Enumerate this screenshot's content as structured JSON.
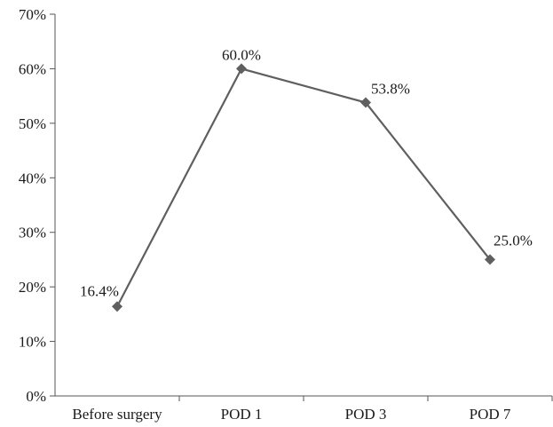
{
  "chart_data": {
    "type": "line",
    "categories": [
      "Before surgery",
      "POD 1",
      "POD 3",
      "POD 7"
    ],
    "series": [
      {
        "values": [
          16.4,
          60.0,
          53.8,
          25.0
        ],
        "labels": [
          "16.4%",
          "60.0%",
          "53.8%",
          "25.0%"
        ],
        "color": "#5f5f5f",
        "marker": "diamond"
      }
    ],
    "ylim": [
      0,
      70
    ],
    "yticks": [
      {
        "value": 0,
        "label": "0%"
      },
      {
        "value": 10,
        "label": "10%"
      },
      {
        "value": 20,
        "label": "20%"
      },
      {
        "value": 30,
        "label": "30%"
      },
      {
        "value": 40,
        "label": "40%"
      },
      {
        "value": 50,
        "label": "50%"
      },
      {
        "value": 60,
        "label": "60%"
      },
      {
        "value": 70,
        "label": "70%"
      }
    ],
    "grid": false,
    "legend": "none"
  }
}
